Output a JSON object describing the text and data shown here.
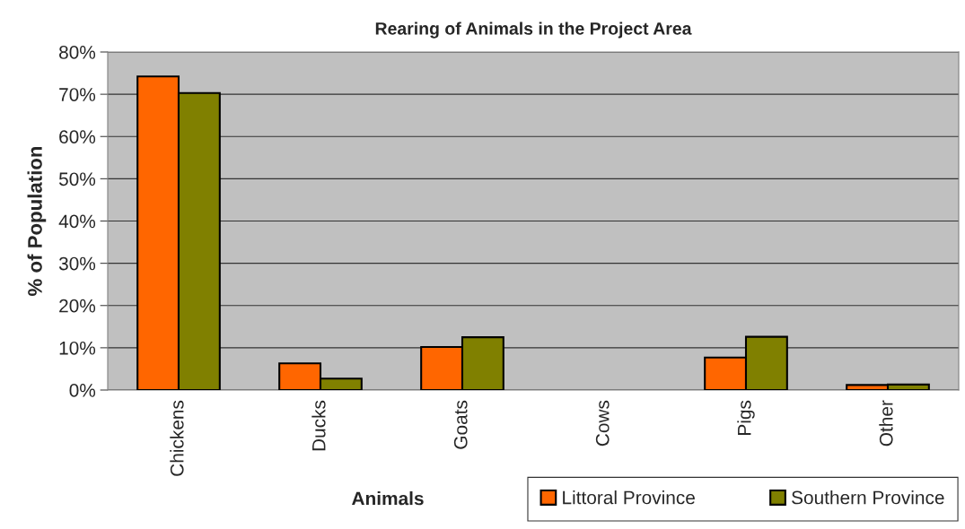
{
  "chart_data": {
    "type": "bar",
    "title": "Rearing of Animals in the Project Area",
    "xlabel": "Animals",
    "ylabel": "% of Population",
    "categories": [
      "Chickens",
      "Ducks",
      "Goats",
      "Cows",
      "Pigs",
      "Other"
    ],
    "series": [
      {
        "name": "Littoral Province",
        "color": "#ff6600",
        "values": [
          74.2,
          6.3,
          10.2,
          0,
          7.7,
          1.2
        ]
      },
      {
        "name": "Southern Province",
        "color": "#808000",
        "values": [
          70.3,
          2.7,
          12.5,
          0,
          12.6,
          1.3
        ]
      }
    ],
    "ylim": [
      0,
      80
    ],
    "yticks": [
      {
        "value": 0,
        "label": "0%"
      },
      {
        "value": 10,
        "label": "10%"
      },
      {
        "value": 20,
        "label": "20%"
      },
      {
        "value": 30,
        "label": "30%"
      },
      {
        "value": 40,
        "label": "40%"
      },
      {
        "value": 50,
        "label": "50%"
      },
      {
        "value": 60,
        "label": "60%"
      },
      {
        "value": 70,
        "label": "70%"
      },
      {
        "value": 80,
        "label": "80%"
      }
    ],
    "grid": "y",
    "legend": "bottom right"
  }
}
